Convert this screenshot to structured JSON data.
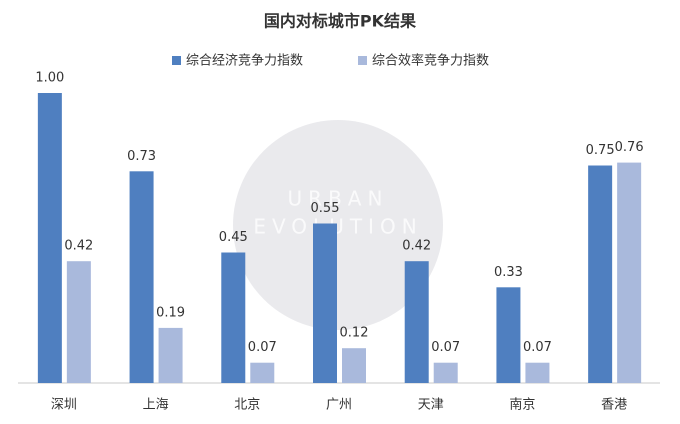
{
  "chart_data": {
    "type": "bar",
    "title": "国内对标城市PK结果",
    "categories": [
      "深圳",
      "上海",
      "北京",
      "广州",
      "天津",
      "南京",
      "香港"
    ],
    "series": [
      {
        "name": "综合经济竞争力指数",
        "color": "#4f7fc0",
        "values": [
          1.0,
          0.73,
          0.45,
          0.55,
          0.42,
          0.33,
          0.75
        ],
        "value_labels": [
          "1.00",
          "0.73",
          "0.45",
          "0.55",
          "0.42",
          "0.33",
          "0.75"
        ]
      },
      {
        "name": "综合效率竞争力指数",
        "color": "#a9b9dc",
        "values": [
          0.42,
          0.19,
          0.07,
          0.12,
          0.07,
          0.07,
          0.76
        ],
        "value_labels": [
          "0.42",
          "0.19",
          "0.07",
          "0.12",
          "0.07",
          "0.07",
          "0.76"
        ]
      }
    ],
    "ylim": [
      0,
      1
    ],
    "annotations": [
      "URBAN",
      "EVOLUTION"
    ]
  }
}
